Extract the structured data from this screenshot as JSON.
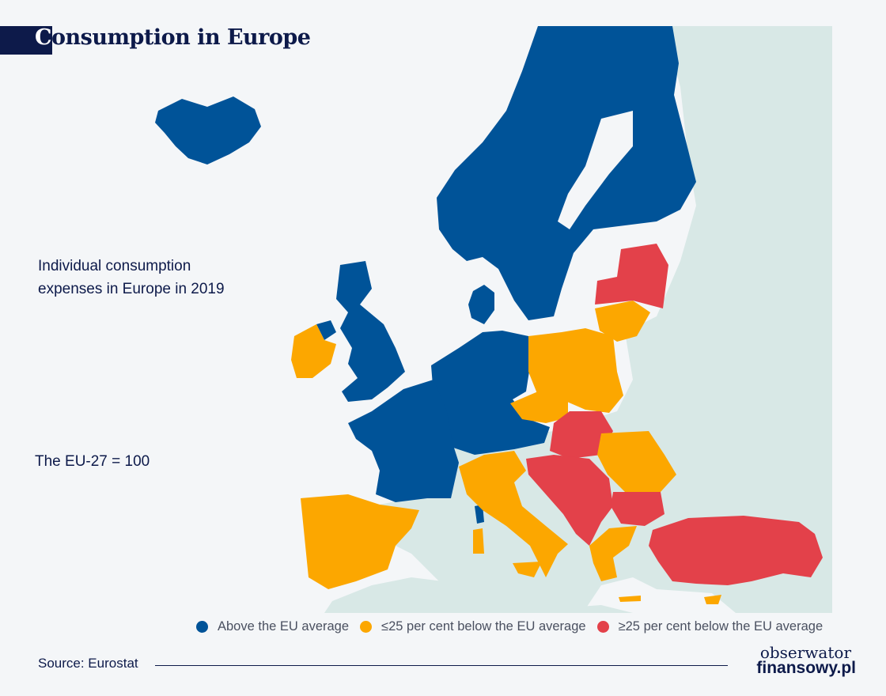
{
  "header": {
    "title_first": "C",
    "title_rest": "onsumption in Europe"
  },
  "subtitle": "Individual consumption expenses in Europe in 2019",
  "note": "The EU-27 = 100",
  "legend": [
    {
      "label": "Above the EU average",
      "color": "#005398"
    },
    {
      "label": "≤25 per cent below the EU average",
      "color": "#fca700"
    },
    {
      "label": "≥25 per cent below the EU average",
      "color": "#e3414a"
    }
  ],
  "source": "Source: Eurostat",
  "logo": {
    "line1": "obserwator",
    "line2": "finansowy.pl"
  },
  "map_data": {
    "colors": {
      "above": "#005398",
      "below_up_to_25": "#fca700",
      "below_over_25": "#e3414a",
      "non_eu": "#d8e8e6",
      "sea": "#f4f6f8"
    },
    "categories": {
      "above": [
        "Iceland",
        "Norway",
        "Sweden",
        "Finland",
        "Denmark",
        "United Kingdom",
        "Netherlands",
        "Belgium",
        "Luxembourg",
        "Germany",
        "France",
        "Austria",
        "Switzerland",
        "Malta"
      ],
      "below_up_to_25": [
        "Ireland",
        "Spain",
        "Portugal",
        "Italy",
        "Poland",
        "Czechia",
        "Lithuania",
        "Slovenia",
        "Romania",
        "Greece",
        "Cyprus"
      ],
      "below_over_25": [
        "Estonia",
        "Latvia",
        "Slovakia",
        "Hungary",
        "Croatia",
        "Bosnia and Herzegovina",
        "Serbia",
        "Montenegro",
        "North Macedonia",
        "Albania",
        "Bulgaria",
        "Turkey"
      ]
    }
  }
}
